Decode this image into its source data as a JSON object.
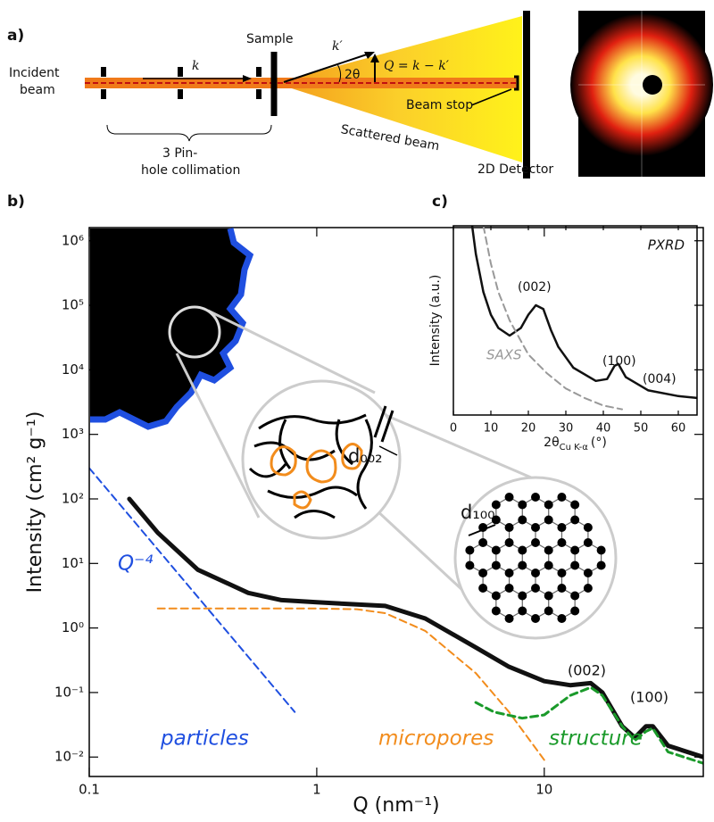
{
  "panel_labels": [
    "a)",
    "b)",
    "c)"
  ],
  "schematic": {
    "incident": [
      "Incident",
      "beam"
    ],
    "sample": "Sample",
    "collimation": [
      "3 Pin-",
      "hole collimation"
    ],
    "k": "k",
    "k_prime": "k′",
    "two_theta": "2θ",
    "q": "Q = k − k′",
    "beam_stop": "Beam stop",
    "scattered": "Scattered beam",
    "detector": "2D Detector"
  },
  "chart_data": [
    {
      "type": "line",
      "xscale": "log",
      "yscale": "log",
      "xlabel": "Q (nm⁻¹)",
      "ylabel": "Intensity (cm² g⁻¹)",
      "xlim": [
        0.1,
        50
      ],
      "ylim": [
        0.005,
        1600000
      ],
      "xticks": [
        0.1,
        1,
        10
      ],
      "yticks": [
        {
          "value": 1000000,
          "label": "10⁶"
        },
        {
          "value": 100000,
          "label": "10⁵"
        },
        {
          "value": 10000,
          "label": "10⁴"
        },
        {
          "value": 1000,
          "label": "10³"
        },
        {
          "value": 100,
          "label": "10²"
        },
        {
          "value": 10,
          "label": "10¹"
        },
        {
          "value": 1,
          "label": "10⁰"
        },
        {
          "value": 0.1,
          "label": "10⁻¹"
        },
        {
          "value": 0.01,
          "label": "10⁻²"
        }
      ],
      "series": [
        {
          "color": "#111111",
          "width": 5,
          "dashed": false,
          "x": [
            0.15,
            0.2,
            0.3,
            0.5,
            0.7,
            1,
            2,
            3,
            5,
            7,
            10,
            13,
            16,
            18,
            22,
            25,
            28,
            30,
            35,
            50
          ],
          "values": [
            100,
            30,
            8,
            3.5,
            2.7,
            2.5,
            2.2,
            1.4,
            0.5,
            0.25,
            0.15,
            0.13,
            0.14,
            0.1,
            0.03,
            0.02,
            0.03,
            0.03,
            0.015,
            0.01
          ]
        },
        {
          "color": "#1f4fe0",
          "width": 2,
          "dashed": true,
          "x": [
            0.1,
            0.8
          ],
          "values": [
            300,
            0.05
          ]
        },
        {
          "color": "#f28c1c",
          "width": 2,
          "dashed": true,
          "x": [
            0.2,
            0.5,
            1,
            1.5,
            2,
            3,
            5,
            7,
            10
          ],
          "values": [
            2,
            2,
            2,
            1.95,
            1.7,
            0.9,
            0.2,
            0.05,
            0.009
          ]
        },
        {
          "color": "#1a9a2a",
          "width": 3,
          "dashed": true,
          "x": [
            5,
            6,
            8,
            10,
            13,
            16,
            18,
            22,
            25,
            28,
            30,
            35,
            50
          ],
          "values": [
            0.07,
            0.05,
            0.04,
            0.045,
            0.09,
            0.12,
            0.09,
            0.03,
            0.018,
            0.025,
            0.028,
            0.012,
            0.008
          ]
        }
      ],
      "annotations": [
        "Q⁻⁴",
        "particles",
        "micropores",
        "structure",
        "(002)",
        "(100)",
        "d₀₀₂",
        "d₁₀₀"
      ]
    },
    {
      "type": "line",
      "xscale": "linear",
      "yscale": "linear",
      "title": "PXRD",
      "xlabel": {
        "main": "2θ",
        "sub": "Cu K-α",
        "unit": "(°)"
      },
      "ylabel": "Intensity (a.u.)",
      "xlim": [
        0,
        65
      ],
      "ylim": [
        0,
        100
      ],
      "xticks": [
        0,
        10,
        20,
        30,
        40,
        50,
        60
      ],
      "series": [
        {
          "color": "#111111",
          "width": 2.5,
          "dashed": false,
          "x": [
            5,
            6,
            8,
            10,
            12,
            15,
            18,
            20,
            22,
            24,
            26,
            28,
            32,
            38,
            41,
            43,
            44,
            46,
            52,
            60,
            65
          ],
          "values": [
            100,
            85,
            65,
            53,
            46,
            42,
            46,
            53,
            58,
            56,
            45,
            36,
            25,
            18,
            19,
            26,
            27,
            20,
            13,
            10,
            9
          ]
        },
        {
          "color": "#999999",
          "width": 2,
          "dashed": true,
          "x": [
            8,
            10,
            12,
            15,
            20,
            25,
            30,
            35,
            40,
            45
          ],
          "values": [
            100,
            80,
            65,
            50,
            32,
            22,
            14,
            9,
            5,
            3
          ]
        }
      ],
      "annotations": [
        "SAXS",
        "(002)",
        "(100)",
        "(004)"
      ]
    }
  ]
}
